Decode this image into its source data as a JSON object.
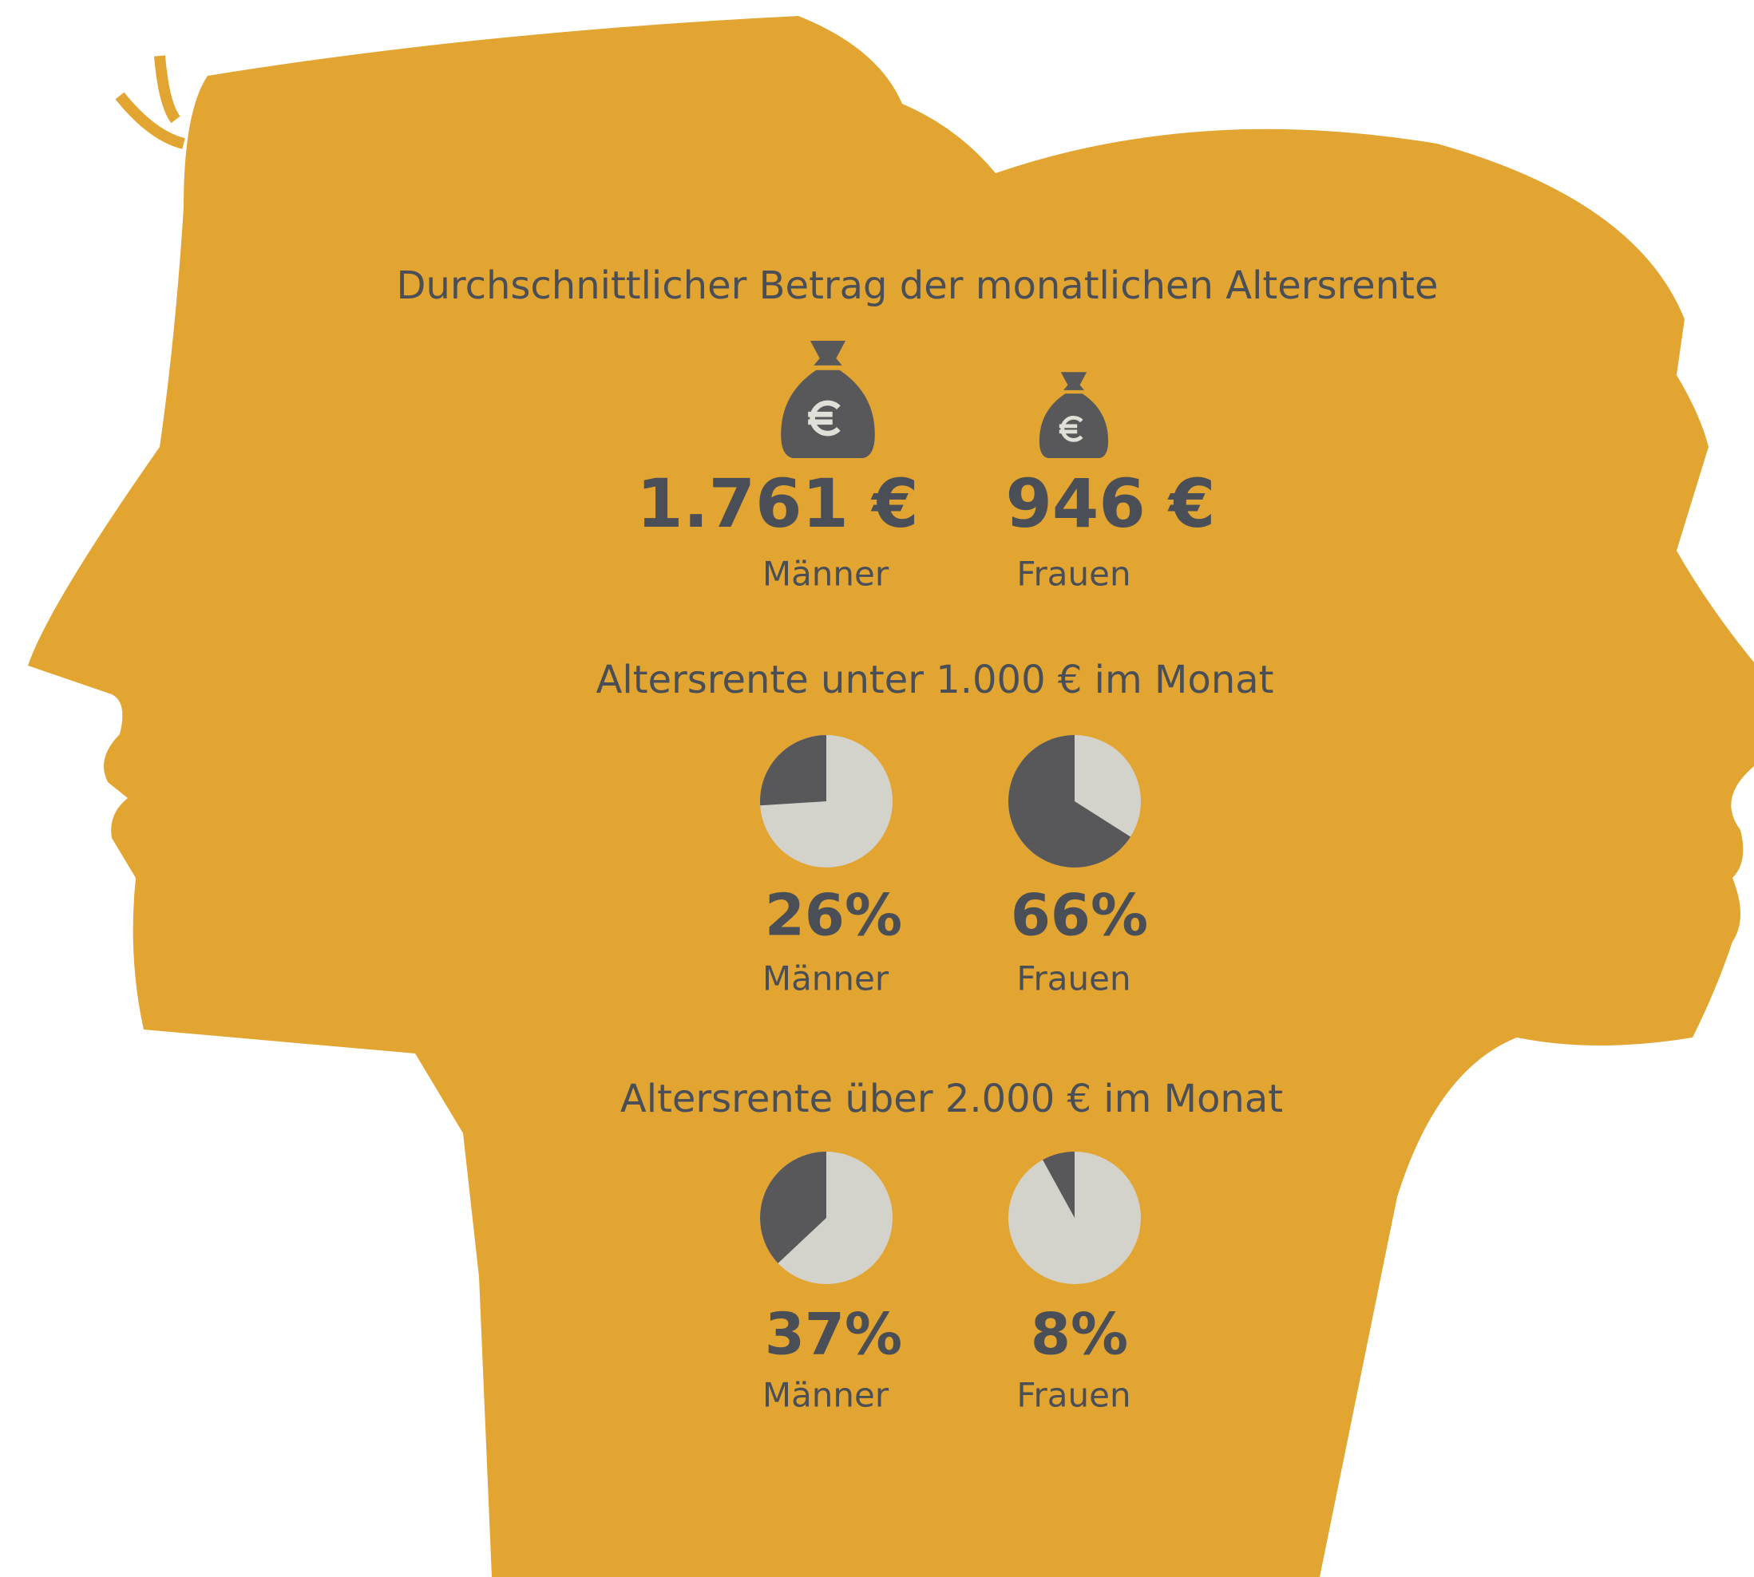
{
  "chart_data": [
    {
      "type": "pictogram",
      "title": "Durchschnittlicher Betrag der monatlichen Altersrente",
      "categories": [
        "Männer",
        "Frauen"
      ],
      "values": [
        1761,
        946
      ],
      "value_labels": [
        "1.761 €",
        "946 €"
      ],
      "color": "#58585a"
    },
    {
      "type": "pie",
      "title": "Altersrente unter 1.000 € im Monat",
      "categories": [
        "Männer",
        "Frauen"
      ],
      "values": [
        26,
        66
      ],
      "value_labels": [
        "26%",
        "66%"
      ],
      "color": "#58585a",
      "rest_color": "#d3d2cb"
    },
    {
      "type": "pie",
      "title": "Altersrente über 2.000 € im Monat",
      "categories": [
        "Männer",
        "Frauen"
      ],
      "values": [
        37,
        8
      ],
      "value_labels": [
        "37%",
        "8%"
      ],
      "color": "#58585a",
      "rest_color": "#d3d2cb"
    }
  ]
}
